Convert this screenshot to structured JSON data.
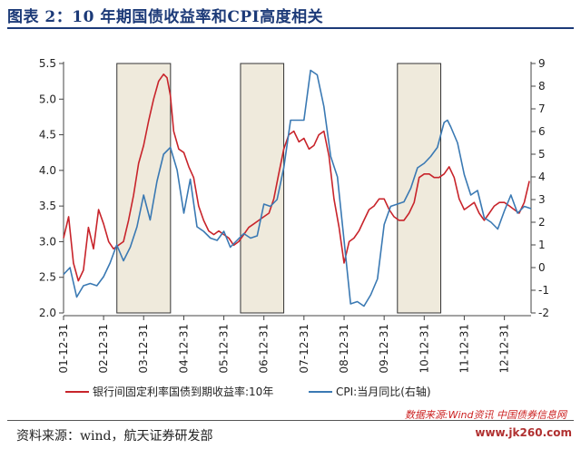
{
  "header": {
    "title": "图表 2：10 年期国债收益率和CPI高度相关"
  },
  "footer": {
    "source": "资料来源：wind，航天证券研发部",
    "watermark_1": "数据来源:Wind资讯 中国债券信息网",
    "watermark_2": "www.jk260.com"
  },
  "chart_data": {
    "type": "line",
    "x_ticks": [
      "01-12-31",
      "02-12-31",
      "03-12-31",
      "04-12-31",
      "05-12-31",
      "06-12-31",
      "07-12-31",
      "08-12-31",
      "09-12-31",
      "10-12-31",
      "11-12-31",
      "12-12-31"
    ],
    "x_range": [
      "2001-12-31",
      "2013-08-31"
    ],
    "ylim_left": [
      2.0,
      5.5
    ],
    "ylim_right": [
      -2,
      9
    ],
    "y_ticks_left": [
      "2.0",
      "2.5",
      "3.0",
      "3.5",
      "4.0",
      "4.5",
      "5.0",
      "5.5"
    ],
    "y_ticks_right": [
      "-2",
      "-1",
      "0",
      "1",
      "2",
      "3",
      "4",
      "5",
      "6",
      "7",
      "8",
      "9"
    ],
    "shaded_periods": [
      [
        "2003-05-01",
        "2004-09-01"
      ],
      [
        "2006-06-01",
        "2007-06-30"
      ],
      [
        "2010-05-01",
        "2011-05-31"
      ]
    ],
    "colors": {
      "bond": "#c8242b",
      "cpi": "#3a79b3",
      "shade_fill": "#efeadc",
      "shade_stroke": "#333333"
    },
    "series": [
      {
        "name": "银行间固定利率国债到期收益率:10年",
        "axis": "left",
        "points": [
          [
            "2001-12-31",
            3.05
          ],
          [
            "2002-02-15",
            3.35
          ],
          [
            "2002-03-31",
            2.7
          ],
          [
            "2002-05-15",
            2.45
          ],
          [
            "2002-06-30",
            2.6
          ],
          [
            "2002-08-15",
            3.2
          ],
          [
            "2002-09-30",
            2.9
          ],
          [
            "2002-11-15",
            3.45
          ],
          [
            "2002-12-31",
            3.25
          ],
          [
            "2003-02-15",
            3.0
          ],
          [
            "2003-03-31",
            2.9
          ],
          [
            "2003-05-15",
            2.95
          ],
          [
            "2003-06-30",
            3.0
          ],
          [
            "2003-08-15",
            3.3
          ],
          [
            "2003-09-30",
            3.65
          ],
          [
            "2003-11-15",
            4.1
          ],
          [
            "2003-12-31",
            4.35
          ],
          [
            "2004-02-15",
            4.7
          ],
          [
            "2004-03-31",
            5.0
          ],
          [
            "2004-05-15",
            5.25
          ],
          [
            "2004-06-30",
            5.35
          ],
          [
            "2004-07-31",
            5.3
          ],
          [
            "2004-08-31",
            5.05
          ],
          [
            "2004-09-30",
            4.55
          ],
          [
            "2004-11-15",
            4.3
          ],
          [
            "2004-12-31",
            4.25
          ],
          [
            "2005-02-15",
            4.05
          ],
          [
            "2005-03-31",
            3.9
          ],
          [
            "2005-05-15",
            3.5
          ],
          [
            "2005-06-30",
            3.3
          ],
          [
            "2005-08-15",
            3.15
          ],
          [
            "2005-09-30",
            3.1
          ],
          [
            "2005-11-15",
            3.15
          ],
          [
            "2005-12-31",
            3.1
          ],
          [
            "2006-02-15",
            3.05
          ],
          [
            "2006-03-31",
            2.95
          ],
          [
            "2006-05-15",
            3.0
          ],
          [
            "2006-06-30",
            3.1
          ],
          [
            "2006-08-15",
            3.2
          ],
          [
            "2006-09-30",
            3.25
          ],
          [
            "2006-11-15",
            3.3
          ],
          [
            "2006-12-31",
            3.35
          ],
          [
            "2007-02-15",
            3.4
          ],
          [
            "2007-03-31",
            3.6
          ],
          [
            "2007-05-15",
            3.95
          ],
          [
            "2007-06-30",
            4.3
          ],
          [
            "2007-08-15",
            4.5
          ],
          [
            "2007-09-30",
            4.55
          ],
          [
            "2007-11-15",
            4.4
          ],
          [
            "2007-12-31",
            4.45
          ],
          [
            "2008-02-15",
            4.3
          ],
          [
            "2008-03-31",
            4.35
          ],
          [
            "2008-05-15",
            4.5
          ],
          [
            "2008-06-30",
            4.55
          ],
          [
            "2008-08-15",
            4.2
          ],
          [
            "2008-09-30",
            3.6
          ],
          [
            "2008-11-15",
            3.2
          ],
          [
            "2008-12-31",
            2.7
          ],
          [
            "2009-02-15",
            3.0
          ],
          [
            "2009-03-31",
            3.05
          ],
          [
            "2009-05-15",
            3.15
          ],
          [
            "2009-06-30",
            3.3
          ],
          [
            "2009-08-15",
            3.45
          ],
          [
            "2009-09-30",
            3.5
          ],
          [
            "2009-11-15",
            3.6
          ],
          [
            "2009-12-31",
            3.6
          ],
          [
            "2010-02-15",
            3.45
          ],
          [
            "2010-03-31",
            3.35
          ],
          [
            "2010-05-15",
            3.3
          ],
          [
            "2010-06-30",
            3.3
          ],
          [
            "2010-08-15",
            3.4
          ],
          [
            "2010-09-30",
            3.55
          ],
          [
            "2010-11-15",
            3.9
          ],
          [
            "2010-12-31",
            3.95
          ],
          [
            "2011-02-15",
            3.95
          ],
          [
            "2011-03-31",
            3.9
          ],
          [
            "2011-05-15",
            3.9
          ],
          [
            "2011-06-30",
            3.95
          ],
          [
            "2011-08-15",
            4.05
          ],
          [
            "2011-09-30",
            3.9
          ],
          [
            "2011-11-15",
            3.6
          ],
          [
            "2011-12-31",
            3.45
          ],
          [
            "2012-02-15",
            3.5
          ],
          [
            "2012-03-31",
            3.55
          ],
          [
            "2012-05-15",
            3.4
          ],
          [
            "2012-06-30",
            3.3
          ],
          [
            "2012-08-15",
            3.4
          ],
          [
            "2012-09-30",
            3.5
          ],
          [
            "2012-11-15",
            3.55
          ],
          [
            "2012-12-31",
            3.55
          ],
          [
            "2013-02-15",
            3.5
          ],
          [
            "2013-03-31",
            3.45
          ],
          [
            "2013-05-15",
            3.4
          ],
          [
            "2013-06-30",
            3.55
          ],
          [
            "2013-08-15",
            3.85
          ]
        ]
      },
      {
        "name": "CPI:当月同比(右轴)",
        "axis": "right",
        "points": [
          [
            "2001-12-31",
            -0.3
          ],
          [
            "2002-02-28",
            0.0
          ],
          [
            "2002-04-30",
            -1.3
          ],
          [
            "2002-06-30",
            -0.8
          ],
          [
            "2002-08-31",
            -0.7
          ],
          [
            "2002-10-31",
            -0.8
          ],
          [
            "2002-12-31",
            -0.4
          ],
          [
            "2003-02-28",
            0.2
          ],
          [
            "2003-04-30",
            1.0
          ],
          [
            "2003-06-30",
            0.3
          ],
          [
            "2003-08-31",
            0.9
          ],
          [
            "2003-10-31",
            1.8
          ],
          [
            "2003-12-31",
            3.2
          ],
          [
            "2004-02-28",
            2.1
          ],
          [
            "2004-04-30",
            3.8
          ],
          [
            "2004-06-30",
            5.0
          ],
          [
            "2004-08-31",
            5.3
          ],
          [
            "2004-10-31",
            4.3
          ],
          [
            "2004-12-31",
            2.4
          ],
          [
            "2005-02-28",
            3.9
          ],
          [
            "2005-04-30",
            1.8
          ],
          [
            "2005-06-30",
            1.6
          ],
          [
            "2005-08-31",
            1.3
          ],
          [
            "2005-10-31",
            1.2
          ],
          [
            "2005-12-31",
            1.6
          ],
          [
            "2006-02-28",
            0.9
          ],
          [
            "2006-04-30",
            1.2
          ],
          [
            "2006-06-30",
            1.5
          ],
          [
            "2006-08-31",
            1.3
          ],
          [
            "2006-10-31",
            1.4
          ],
          [
            "2006-12-31",
            2.8
          ],
          [
            "2007-02-28",
            2.7
          ],
          [
            "2007-04-30",
            3.0
          ],
          [
            "2007-06-30",
            4.4
          ],
          [
            "2007-08-31",
            6.5
          ],
          [
            "2007-10-31",
            6.5
          ],
          [
            "2007-12-31",
            6.5
          ],
          [
            "2008-02-29",
            8.7
          ],
          [
            "2008-04-30",
            8.5
          ],
          [
            "2008-06-30",
            7.1
          ],
          [
            "2008-08-31",
            4.9
          ],
          [
            "2008-10-31",
            4.0
          ],
          [
            "2008-12-31",
            1.2
          ],
          [
            "2009-02-28",
            -1.6
          ],
          [
            "2009-04-30",
            -1.5
          ],
          [
            "2009-06-30",
            -1.7
          ],
          [
            "2009-08-31",
            -1.2
          ],
          [
            "2009-10-31",
            -0.5
          ],
          [
            "2009-12-31",
            1.9
          ],
          [
            "2010-02-28",
            2.7
          ],
          [
            "2010-04-30",
            2.8
          ],
          [
            "2010-06-30",
            2.9
          ],
          [
            "2010-08-31",
            3.5
          ],
          [
            "2010-10-31",
            4.4
          ],
          [
            "2010-12-31",
            4.6
          ],
          [
            "2011-02-28",
            4.9
          ],
          [
            "2011-04-30",
            5.3
          ],
          [
            "2011-06-30",
            6.4
          ],
          [
            "2011-07-31",
            6.5
          ],
          [
            "2011-08-31",
            6.2
          ],
          [
            "2011-10-31",
            5.5
          ],
          [
            "2011-12-31",
            4.1
          ],
          [
            "2012-02-29",
            3.2
          ],
          [
            "2012-04-30",
            3.4
          ],
          [
            "2012-06-30",
            2.2
          ],
          [
            "2012-08-31",
            2.0
          ],
          [
            "2012-10-31",
            1.7
          ],
          [
            "2012-12-31",
            2.5
          ],
          [
            "2013-02-28",
            3.2
          ],
          [
            "2013-04-30",
            2.4
          ],
          [
            "2013-06-30",
            2.7
          ],
          [
            "2013-08-31",
            2.6
          ]
        ]
      }
    ]
  }
}
